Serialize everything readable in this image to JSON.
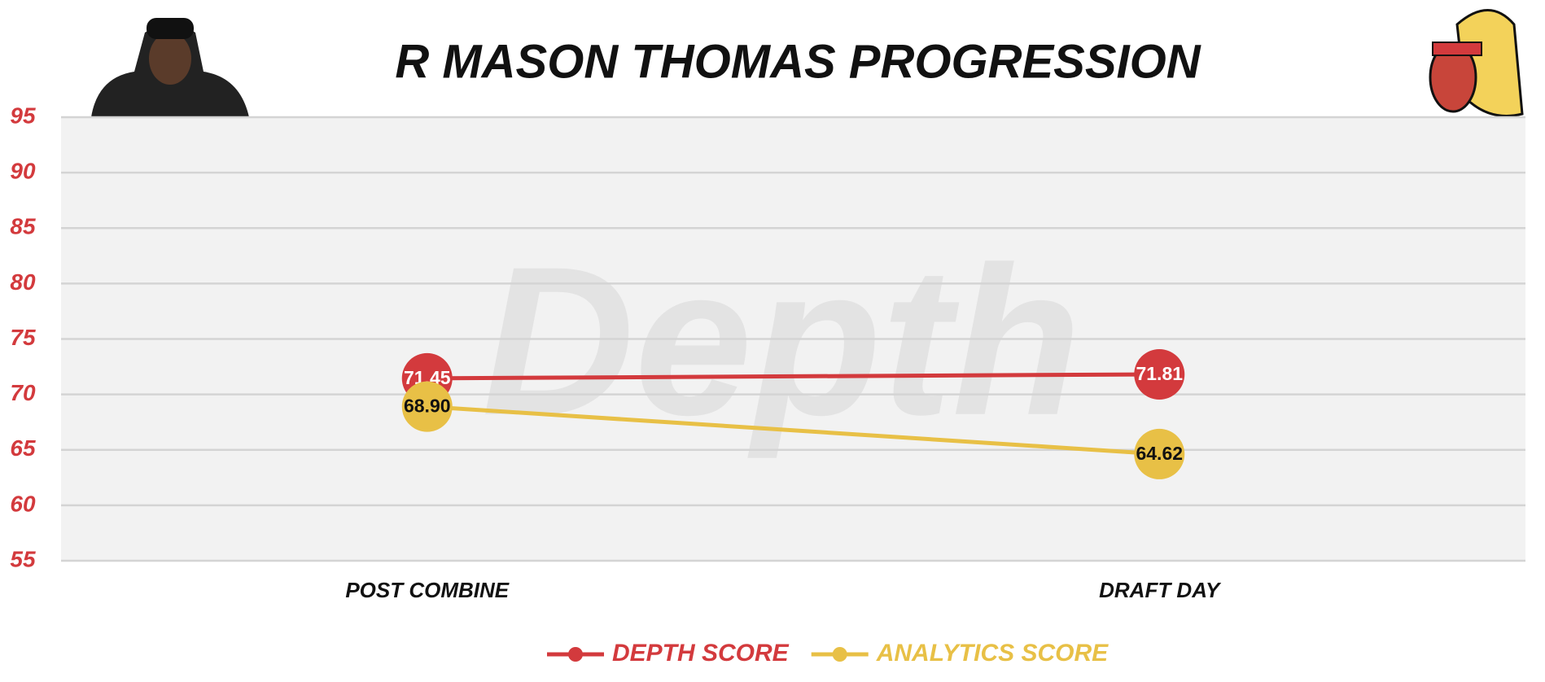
{
  "chart_data": {
    "type": "line",
    "title": "R MASON THOMAS PROGRESSION",
    "watermark": "Depth",
    "categories": [
      "POST COMBINE",
      "DRAFT DAY"
    ],
    "series": [
      {
        "name": "DEPTH SCORE",
        "color": "#d33a3d",
        "label_color": "#ffffff",
        "values": [
          71.45,
          71.81
        ],
        "value_labels": [
          "71.45",
          "71.81"
        ]
      },
      {
        "name": "ANALYTICS SCORE",
        "color": "#e8c046",
        "label_color": "#111111",
        "values": [
          68.9,
          64.62
        ],
        "value_labels": [
          "68.90",
          "64.62"
        ]
      }
    ],
    "ylim": [
      55,
      95
    ],
    "yticks": [
      55,
      60,
      65,
      70,
      75,
      80,
      85,
      90,
      95
    ],
    "grid": true,
    "legend": "bottom",
    "tick_color": "#d33a3d"
  }
}
